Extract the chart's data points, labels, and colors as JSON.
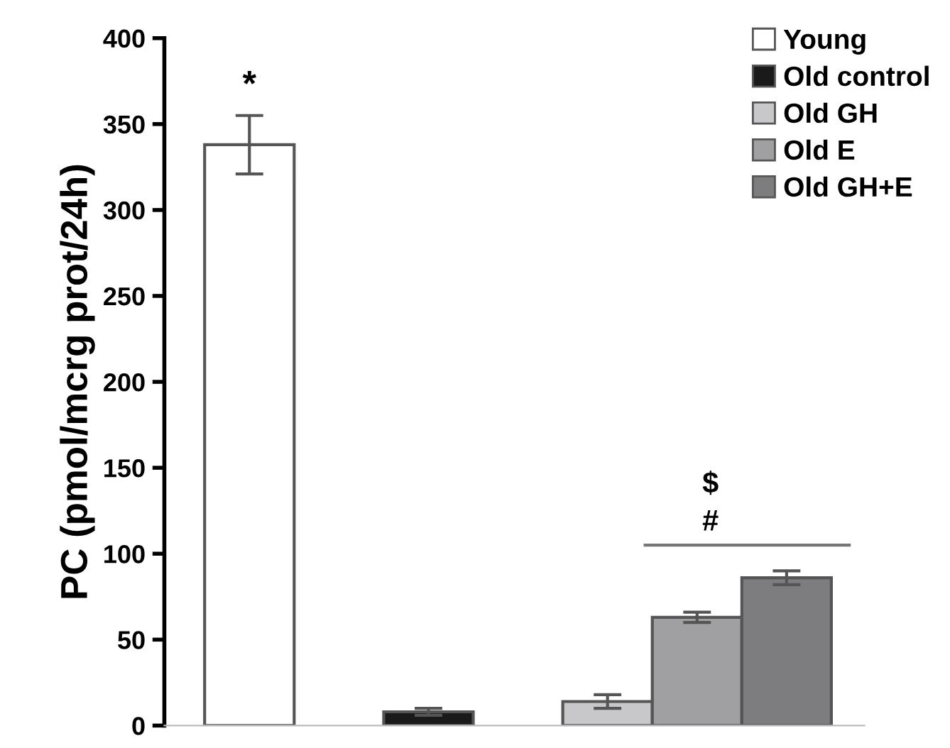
{
  "chart_data": {
    "type": "bar",
    "ylabel": "PC (pmol/mcrg prot/24h)",
    "categories": [
      null,
      null,
      null,
      null,
      null,
      null,
      null
    ],
    "series": [
      {
        "name": "Young",
        "color": "#ffffff",
        "values": [
          338,
          null,
          null,
          null,
          null,
          null,
          null
        ],
        "errors": [
          17,
          null,
          null,
          null,
          null,
          null,
          null
        ]
      },
      {
        "name": "Old control",
        "color": "#1a1a1a",
        "values": [
          null,
          null,
          8,
          null,
          null,
          null,
          null
        ],
        "errors": [
          null,
          null,
          2,
          null,
          null,
          null,
          null
        ]
      },
      {
        "name": "Old GH",
        "color": "#c8c8ca",
        "values": [
          null,
          null,
          null,
          null,
          14,
          null,
          null
        ],
        "errors": [
          null,
          null,
          null,
          null,
          4,
          null,
          null
        ]
      },
      {
        "name": "Old E",
        "color": "#a0a0a3",
        "values": [
          null,
          null,
          null,
          null,
          null,
          63,
          null
        ],
        "errors": [
          null,
          null,
          null,
          null,
          null,
          3,
          null
        ]
      },
      {
        "name": "Old GH+E",
        "color": "#7d7d80",
        "values": [
          null,
          null,
          null,
          null,
          null,
          null,
          86
        ],
        "errors": [
          null,
          null,
          null,
          null,
          null,
          null,
          4
        ]
      }
    ],
    "ylim": [
      0,
      400
    ],
    "yticks": [
      0,
      50,
      100,
      150,
      200,
      250,
      300,
      350,
      400
    ],
    "annotations": [
      "*",
      "$",
      "#"
    ],
    "tick_labels": "y",
    "legend": "top right",
    "grid": false
  }
}
